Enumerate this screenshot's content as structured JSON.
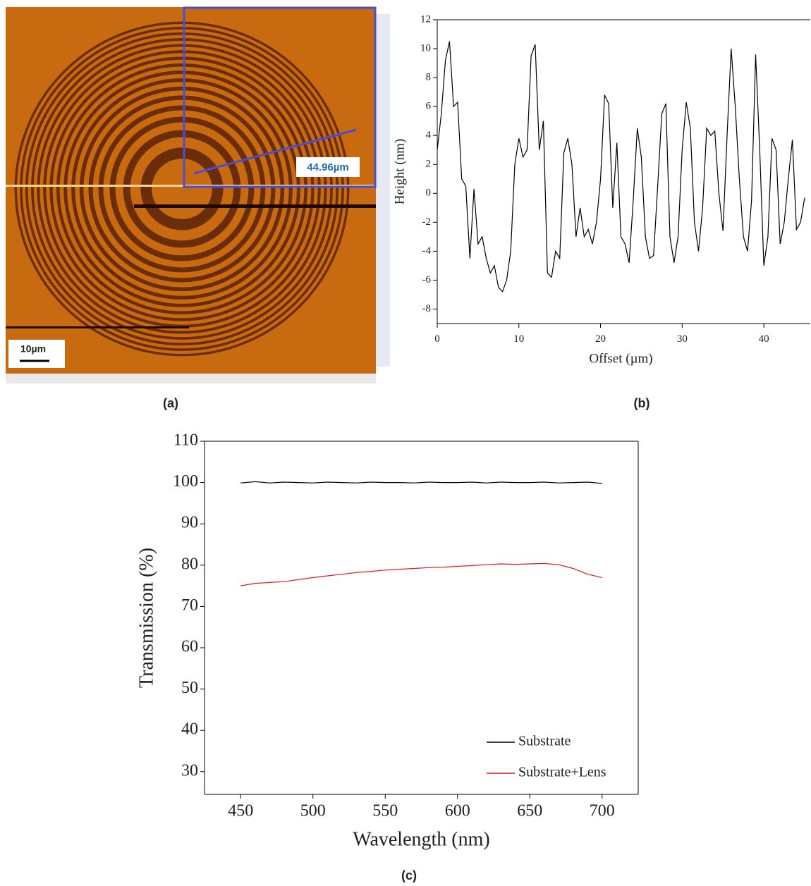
{
  "image": {
    "measurement": "44.96µm",
    "scale_bar": "10µm",
    "label": "(a)"
  },
  "chart_data": [
    {
      "type": "line",
      "label": "(b)",
      "x_label": "Offset (µm)",
      "y_label": "Height (nm)",
      "xlim": [
        0,
        45
      ],
      "xticks": [
        0,
        10,
        20,
        30,
        40
      ],
      "ylim": [
        -9,
        12
      ],
      "yticks": [
        -8,
        -6,
        -4,
        -2,
        0,
        2,
        4,
        6,
        8,
        10,
        12
      ],
      "x": [
        0,
        0.5,
        1,
        1.5,
        2,
        2.5,
        3,
        3.5,
        4,
        4.5,
        5,
        5.5,
        6,
        6.5,
        7,
        7.5,
        8,
        8.5,
        9,
        9.5,
        10,
        10.5,
        11,
        11.5,
        12,
        12.5,
        13,
        13.5,
        14,
        14.5,
        15,
        15.5,
        16,
        16.5,
        17,
        17.5,
        18,
        18.5,
        19,
        19.5,
        20,
        20.5,
        21,
        21.5,
        22,
        22.5,
        23,
        23.5,
        24,
        24.5,
        25,
        25.5,
        26,
        26.5,
        27,
        27.5,
        28,
        28.5,
        29,
        29.5,
        30,
        30.5,
        31,
        31.5,
        32,
        32.5,
        33,
        33.5,
        34,
        34.5,
        35,
        35.5,
        36,
        36.5,
        37,
        37.5,
        38,
        38.5,
        39,
        39.5,
        40,
        40.5,
        41,
        41.5,
        42,
        42.5,
        43,
        43.5,
        44,
        44.5,
        45
      ],
      "series": [
        {
          "color": "#000000",
          "values": [
            3,
            5.5,
            9.2,
            10.5,
            6,
            6.3,
            1,
            0.5,
            -4.5,
            0.3,
            -3.5,
            -3,
            -4.5,
            -5.5,
            -5,
            -6.5,
            -6.8,
            -6,
            -4,
            2,
            3.8,
            2.5,
            3,
            9.5,
            10.3,
            3,
            5,
            -5.5,
            -5.8,
            -4,
            -4.5,
            2.8,
            3.8,
            2,
            -3,
            -1,
            -3,
            -2.5,
            -3.5,
            -2,
            1,
            6.8,
            6.2,
            -1,
            3.5,
            -3,
            -3.5,
            -4.8,
            -0.5,
            4.5,
            2.5,
            -3,
            -4.5,
            -4.3,
            0.5,
            5.5,
            6.2,
            -3,
            -4.8,
            -3,
            3,
            6.3,
            4.5,
            -2,
            -4,
            -1,
            4.5,
            4,
            4.3,
            0,
            -2.6,
            4,
            10,
            6,
            1,
            -3,
            -4,
            -0.5,
            9.6,
            3,
            -5,
            -3,
            3.8,
            3,
            -3.5,
            -2,
            1,
            3.7,
            -2.5,
            -2,
            -0.3
          ]
        }
      ]
    },
    {
      "type": "line",
      "label": "(c)",
      "x_label": "Wavelength (nm)",
      "y_label": "Transmission (%)",
      "xlim": [
        425,
        725
      ],
      "xticks": [
        450,
        500,
        550,
        600,
        650,
        700
      ],
      "ylim": [
        24.5,
        110
      ],
      "yticks": [
        30,
        40,
        50,
        60,
        70,
        80,
        90,
        100,
        110
      ],
      "legend": "lower right",
      "x": [
        450,
        460,
        470,
        480,
        490,
        500,
        510,
        520,
        530,
        540,
        550,
        560,
        570,
        580,
        590,
        600,
        610,
        620,
        630,
        640,
        650,
        660,
        670,
        680,
        690,
        700
      ],
      "series": [
        {
          "name": "Substrate",
          "color": "#000000",
          "values": [
            99.9,
            100.2,
            99.9,
            100.1,
            100,
            99.9,
            100.1,
            100,
            99.9,
            100.1,
            100,
            100,
            99.9,
            100.1,
            100,
            100,
            100.1,
            99.9,
            100.1,
            100,
            100,
            100.1,
            99.9,
            100,
            100.1,
            99.8
          ]
        },
        {
          "name": "Substrate+Lens",
          "color": "#e8161b",
          "values": [
            75,
            75.6,
            75.8,
            76,
            76.5,
            77,
            77.4,
            77.8,
            78.2,
            78.5,
            78.8,
            79,
            79.2,
            79.4,
            79.5,
            79.7,
            79.9,
            80.1,
            80.3,
            80.2,
            80.3,
            80.4,
            80.1,
            79.2,
            77.8,
            77
          ]
        }
      ]
    }
  ]
}
